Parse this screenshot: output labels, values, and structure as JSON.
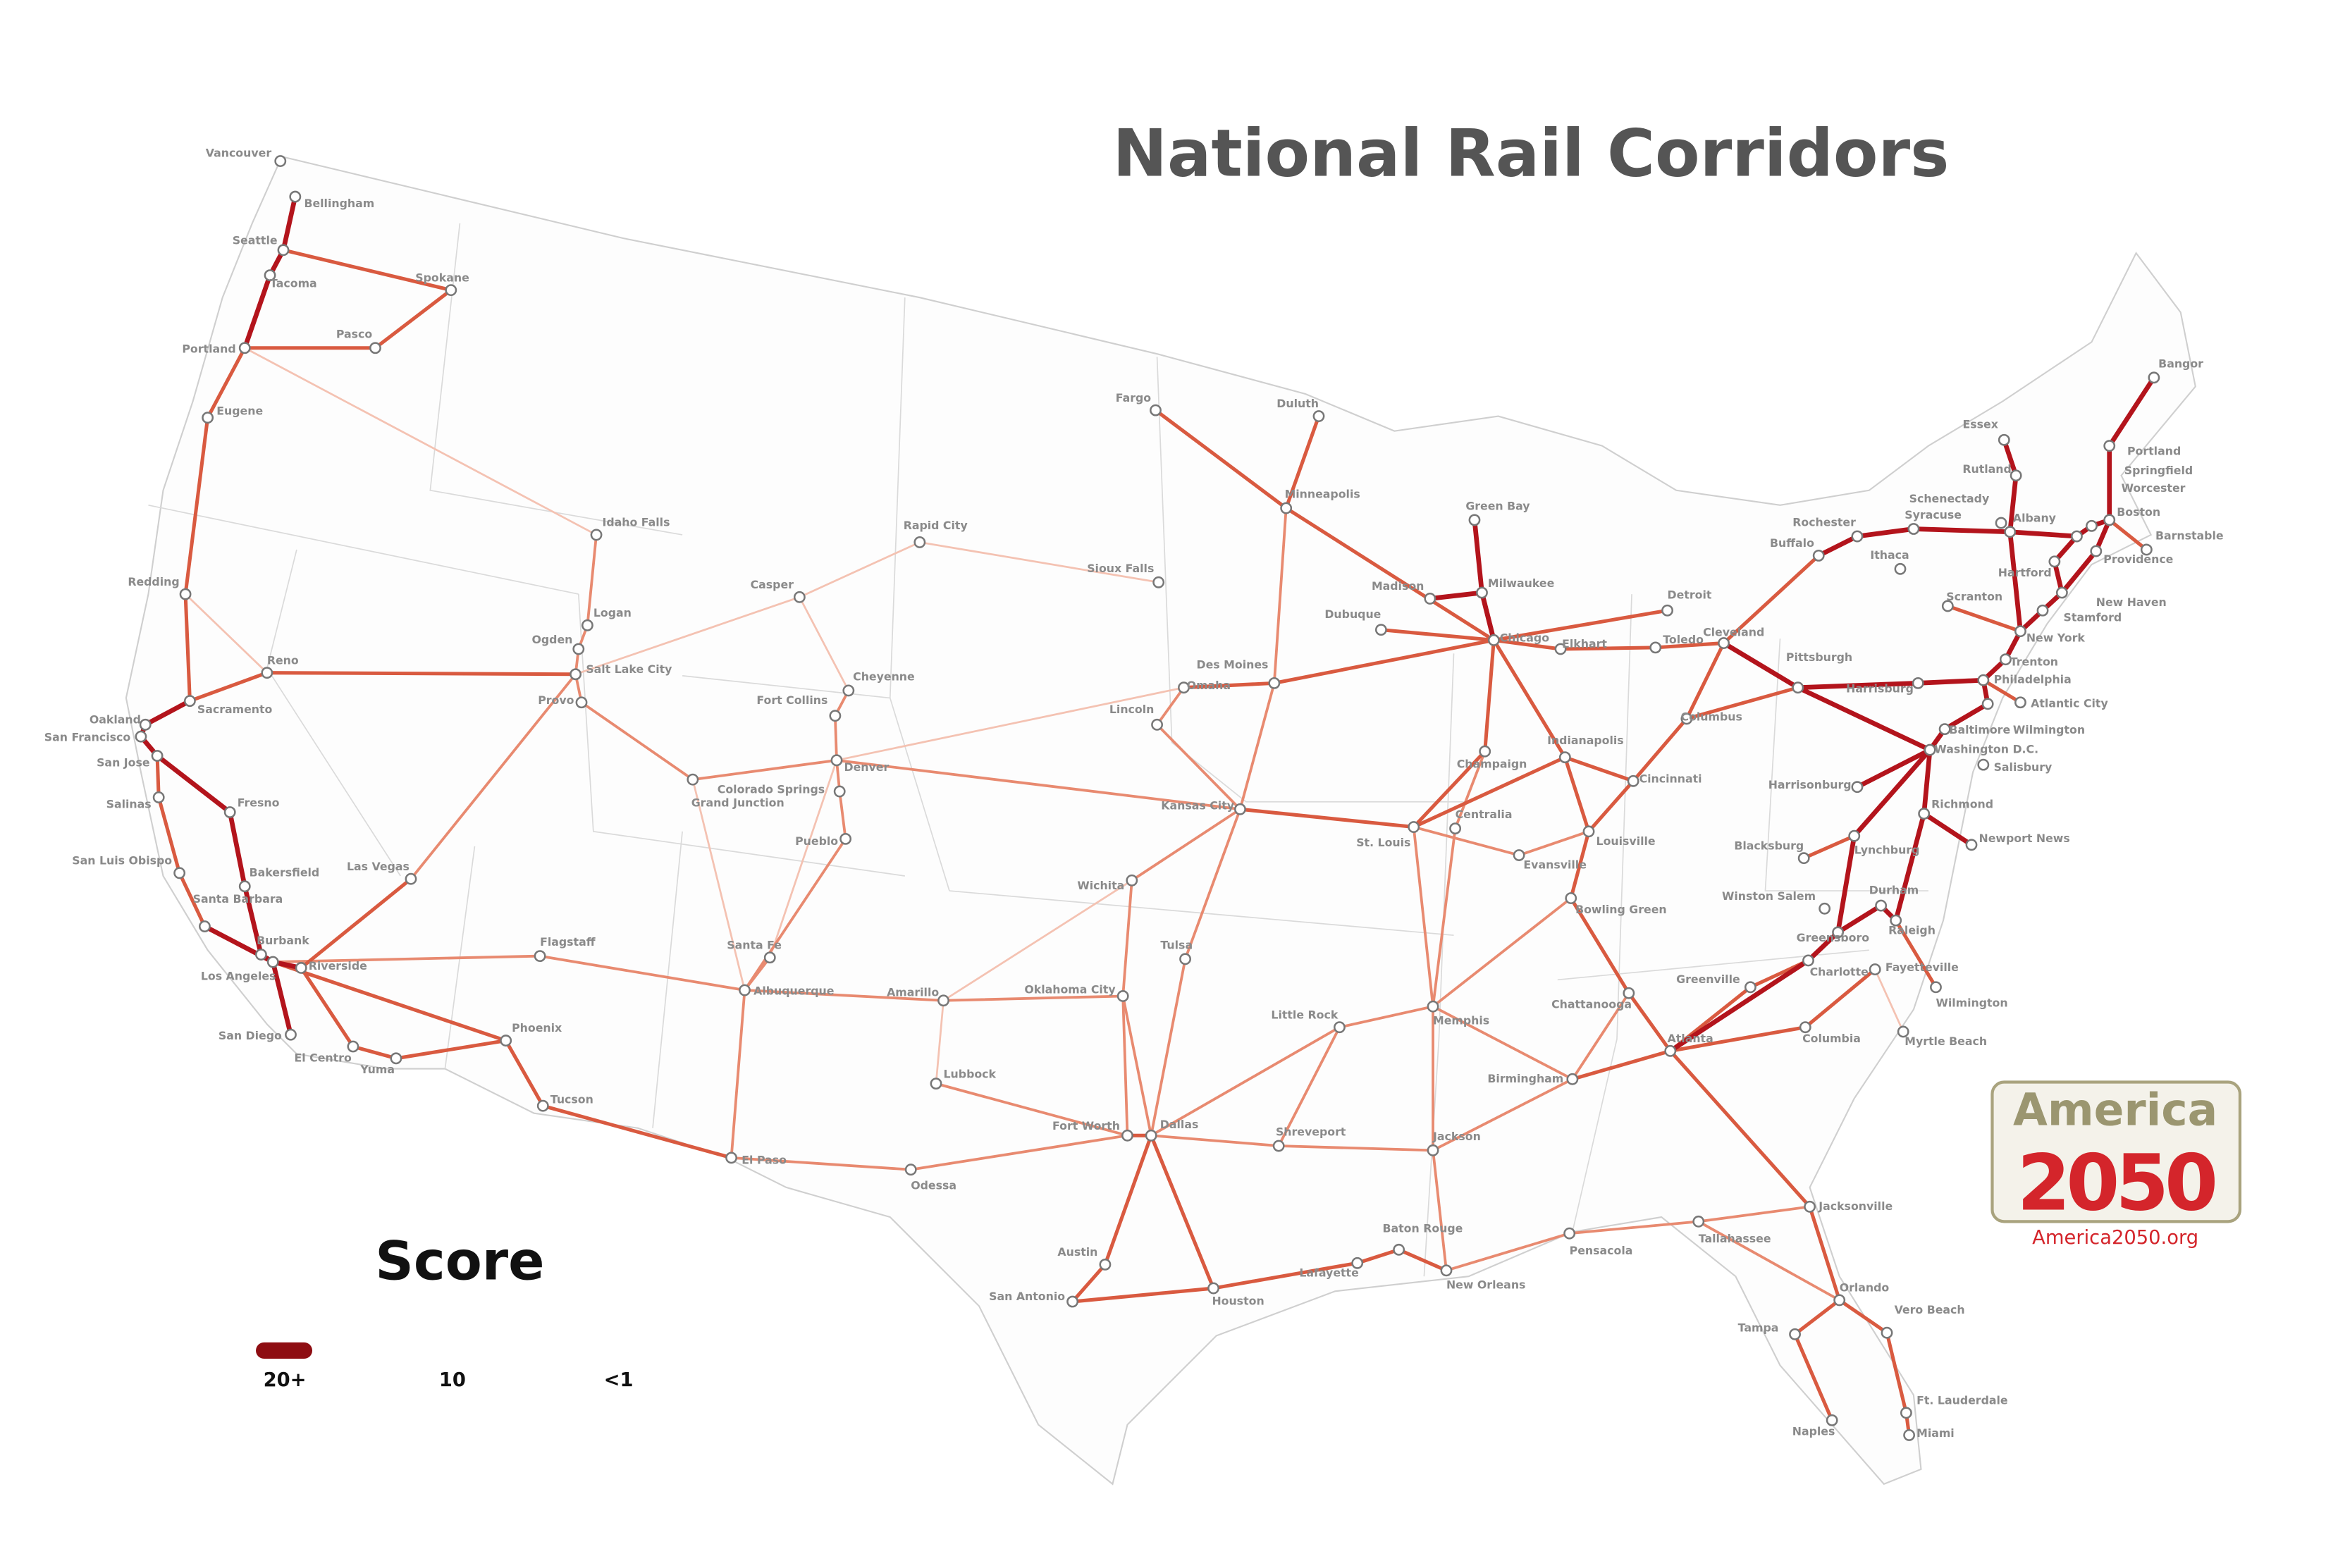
{
  "title": "National Rail Corridors",
  "legend": {
    "title": "Score",
    "labels": [
      "20+",
      "10",
      "<1"
    ]
  },
  "logo": {
    "name": "America",
    "number": "2050",
    "url": "America2050.org"
  },
  "cities": [
    "Vancouver",
    "Bellingham",
    "Seattle",
    "Tacoma",
    "Spokane",
    "Pasco",
    "Portland",
    "Eugene",
    "Redding",
    "Reno",
    "Sacramento",
    "Oakland",
    "San Francisco",
    "San Jose",
    "Salinas",
    "Fresno",
    "San Luis Obispo",
    "Bakersfield",
    "Santa Barbara",
    "Burbank",
    "Los Angeles",
    "Riverside",
    "San Diego",
    "El Centro",
    "Yuma",
    "Las Vegas",
    "Phoenix",
    "Tucson",
    "Flagstaff",
    "Idaho Falls",
    "Logan",
    "Ogden",
    "Salt Lake City",
    "Provo",
    "Grand Junction",
    "Casper",
    "Rapid City",
    "Cheyenne",
    "Fort Collins",
    "Denver",
    "Colorado Springs",
    "Pueblo",
    "Santa Fe",
    "Albuquerque",
    "El Paso",
    "Amarillo",
    "Lubbock",
    "Odessa",
    "Fargo",
    "Duluth",
    "Minneapolis",
    "Sioux Falls",
    "Omaha",
    "Lincoln",
    "Des Moines",
    "Kansas City",
    "Wichita",
    "Tulsa",
    "Oklahoma City",
    "Fort Worth",
    "Dallas",
    "Austin",
    "San Antonio",
    "Houston",
    "Shreveport",
    "Little Rock",
    "Baton Rouge",
    "Lafayette",
    "New Orleans",
    "Jackson",
    "Memphis",
    "Birmingham",
    "Green Bay",
    "Madison",
    "Milwaukee",
    "Dubuque",
    "Chicago",
    "Elkhart",
    "Detroit",
    "Toledo",
    "Cleveland",
    "Champaign",
    "Indianapolis",
    "Columbus",
    "Cincinnati",
    "Centralia",
    "St. Louis",
    "Evansville",
    "Louisville",
    "Bowling Green",
    "Chattanooga",
    "Atlanta",
    "Greenville",
    "Columbia",
    "Charlotte",
    "Greensboro",
    "Winston Salem",
    "Durham",
    "Raleigh",
    "Fayetteville",
    "Wilmington",
    "Myrtle Beach",
    "Jacksonville",
    "Tallahassee",
    "Pensacola",
    "Orlando",
    "Tampa",
    "Vero Beach",
    "Ft. Lauderdale",
    "Miami",
    "Naples",
    "Pittsburgh",
    "Harrisburg",
    "Harrisonburg",
    "Blacksburg",
    "Lynchburg",
    "Richmond",
    "Newport News",
    "Washington D.C.",
    "Baltimore",
    "Wilmington",
    "Philadelphia",
    "Atlantic City",
    "Salisbury",
    "Trenton",
    "New York",
    "Stamford",
    "New Haven",
    "Hartford",
    "Scranton",
    "Buffalo",
    "Rochester",
    "Syracuse",
    "Ithaca",
    "Schenectady",
    "Albany",
    "Rutland",
    "Essex",
    "Springfield",
    "Worcester",
    "Boston",
    "Providence",
    "Barnstable",
    "Portland",
    "Bangor"
  ]
}
